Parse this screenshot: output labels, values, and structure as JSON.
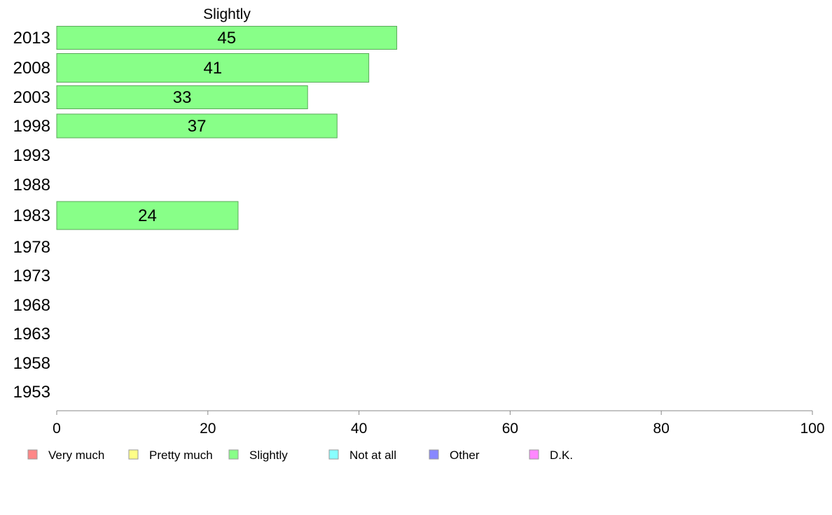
{
  "chart_data": {
    "type": "bar",
    "orientation": "horizontal",
    "title": "Slightly",
    "categories": [
      "2013",
      "2008",
      "2003",
      "1998",
      "1993",
      "1988",
      "1983",
      "1978",
      "1973",
      "1968",
      "1963",
      "1958",
      "1953"
    ],
    "series": [
      {
        "name": "Slightly",
        "color": "#88ff88",
        "values": [
          45,
          41.3,
          33.2,
          37.1,
          null,
          null,
          24,
          null,
          null,
          null,
          null,
          null,
          null
        ],
        "labels": [
          "45",
          "41",
          "33",
          "37",
          "",
          "",
          "24",
          "",
          "",
          "",
          "",
          "",
          ""
        ]
      }
    ],
    "xlim": [
      0,
      100
    ],
    "xticks": [
      "0",
      "20",
      "40",
      "60",
      "80",
      "100"
    ],
    "grid": false,
    "legend_position": "bottom",
    "legend": [
      {
        "label": "Very much",
        "color": "#ff8888"
      },
      {
        "label": "Pretty much",
        "color": "#ffff88"
      },
      {
        "label": "Slightly",
        "color": "#88ff88"
      },
      {
        "label": "Not at all",
        "color": "#88ffff"
      },
      {
        "label": "Other",
        "color": "#8888ff"
      },
      {
        "label": "D.K.",
        "color": "#ff88ff"
      }
    ]
  }
}
